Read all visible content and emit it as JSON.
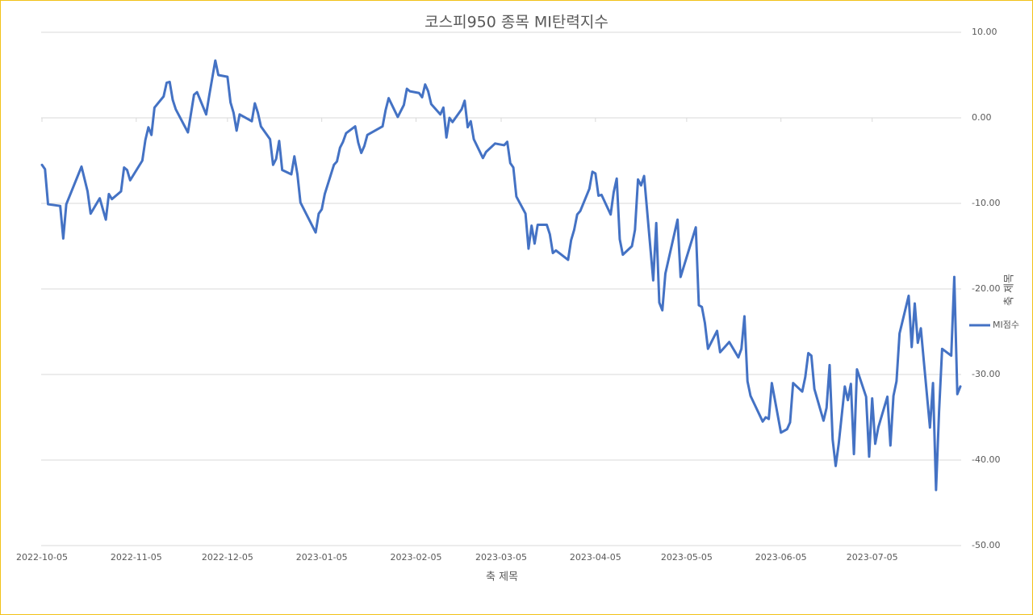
{
  "chart_data": {
    "type": "line",
    "title": "코스피950 종목 MI탄력지수",
    "x_label": "축 제목",
    "y_label": "축 제목",
    "legend": "right",
    "grid": true,
    "xlim": [
      "2022-10-05",
      "2023-08-03"
    ],
    "xticks": [
      "2022-10-05",
      "2022-11-05",
      "2022-12-05",
      "2023-01-05",
      "2023-02-05",
      "2023-03-05",
      "2023-04-05",
      "2023-05-05",
      "2023-06-05",
      "2023-07-05"
    ],
    "ylim": [
      -50,
      10
    ],
    "yticks": [
      {
        "value": 10,
        "label": "10.00"
      },
      {
        "value": 0,
        "label": "0.00"
      },
      {
        "value": -10,
        "label": "-10.00"
      },
      {
        "value": -20,
        "label": "-20.00"
      },
      {
        "value": -30,
        "label": "-30.00"
      },
      {
        "value": -40,
        "label": "-40.00"
      },
      {
        "value": -50,
        "label": "-50.00"
      }
    ],
    "x": [
      "2022-10-05",
      "2022-10-06",
      "2022-10-07",
      "2022-10-11",
      "2022-10-12",
      "2022-10-13",
      "2022-10-18",
      "2022-10-20",
      "2022-10-21",
      "2022-10-24",
      "2022-10-26",
      "2022-10-27",
      "2022-10-28",
      "2022-10-31",
      "2022-11-01",
      "2022-11-02",
      "2022-11-03",
      "2022-11-07",
      "2022-11-08",
      "2022-11-09",
      "2022-11-10",
      "2022-11-11",
      "2022-11-14",
      "2022-11-15",
      "2022-11-16",
      "2022-11-17",
      "2022-11-18",
      "2022-11-22",
      "2022-11-24",
      "2022-11-25",
      "2022-11-28",
      "2022-11-29",
      "2022-12-01",
      "2022-12-02",
      "2022-12-05",
      "2022-12-06",
      "2022-12-07",
      "2022-12-08",
      "2022-12-09",
      "2022-12-13",
      "2022-12-14",
      "2022-12-15",
      "2022-12-16",
      "2022-12-19",
      "2022-12-20",
      "2022-12-21",
      "2022-12-22",
      "2022-12-23",
      "2022-12-26",
      "2022-12-27",
      "2022-12-28",
      "2022-12-29",
      "2023-01-03",
      "2023-01-04",
      "2023-01-05",
      "2023-01-06",
      "2023-01-09",
      "2023-01-10",
      "2023-01-11",
      "2023-01-12",
      "2023-01-13",
      "2023-01-16",
      "2023-01-17",
      "2023-01-18",
      "2023-01-19",
      "2023-01-20",
      "2023-01-25",
      "2023-01-26",
      "2023-01-27",
      "2023-01-30",
      "2023-02-01",
      "2023-02-02",
      "2023-02-03",
      "2023-02-06",
      "2023-02-07",
      "2023-02-08",
      "2023-02-09",
      "2023-02-10",
      "2023-02-13",
      "2023-02-14",
      "2023-02-15",
      "2023-02-16",
      "2023-02-17",
      "2023-02-20",
      "2023-02-21",
      "2023-02-22",
      "2023-02-23",
      "2023-02-24",
      "2023-02-27",
      "2023-02-28",
      "2023-03-03",
      "2023-03-06",
      "2023-03-07",
      "2023-03-08",
      "2023-03-09",
      "2023-03-10",
      "2023-03-13",
      "2023-03-14",
      "2023-03-15",
      "2023-03-16",
      "2023-03-17",
      "2023-03-20",
      "2023-03-21",
      "2023-03-22",
      "2023-03-23",
      "2023-03-27",
      "2023-03-28",
      "2023-03-29",
      "2023-03-30",
      "2023-03-31",
      "2023-04-03",
      "2023-04-04",
      "2023-04-05",
      "2023-04-06",
      "2023-04-07",
      "2023-04-10",
      "2023-04-11",
      "2023-04-12",
      "2023-04-13",
      "2023-04-14",
      "2023-04-17",
      "2023-04-18",
      "2023-04-19",
      "2023-04-20",
      "2023-04-21",
      "2023-04-24",
      "2023-04-25",
      "2023-04-26",
      "2023-04-27",
      "2023-04-28",
      "2023-05-02",
      "2023-05-03",
      "2023-05-08",
      "2023-05-09",
      "2023-05-10",
      "2023-05-11",
      "2023-05-12",
      "2023-05-15",
      "2023-05-16",
      "2023-05-19",
      "2023-05-22",
      "2023-05-23",
      "2023-05-24",
      "2023-05-25",
      "2023-05-26",
      "2023-05-30",
      "2023-05-31",
      "2023-06-01",
      "2023-06-02",
      "2023-06-05",
      "2023-06-07",
      "2023-06-08",
      "2023-06-09",
      "2023-06-12",
      "2023-06-13",
      "2023-06-14",
      "2023-06-15",
      "2023-06-16",
      "2023-06-19",
      "2023-06-20",
      "2023-06-21",
      "2023-06-22",
      "2023-06-23",
      "2023-06-24",
      "2023-06-26",
      "2023-06-27",
      "2023-06-28",
      "2023-06-29",
      "2023-06-30",
      "2023-07-03",
      "2023-07-04",
      "2023-07-05",
      "2023-07-06",
      "2023-07-07",
      "2023-07-10",
      "2023-07-11",
      "2023-07-12",
      "2023-07-13",
      "2023-07-14",
      "2023-07-17",
      "2023-07-18",
      "2023-07-19",
      "2023-07-20",
      "2023-07-21",
      "2023-07-22",
      "2023-07-24",
      "2023-07-25",
      "2023-07-26",
      "2023-07-27",
      "2023-07-28",
      "2023-07-31",
      "2023-08-01",
      "2023-08-02",
      "2023-08-03"
    ],
    "series": [
      {
        "name": "MI점수",
        "color": "#4472c4",
        "values": [
          -5.5,
          -6.0,
          -10.1,
          -10.3,
          -14.1,
          -10.1,
          -5.7,
          -8.6,
          -11.2,
          -9.4,
          -11.9,
          -8.9,
          -9.5,
          -8.6,
          -5.8,
          -6.1,
          -7.3,
          -5.0,
          -2.6,
          -1.1,
          -2.0,
          1.2,
          2.5,
          4.1,
          4.2,
          2.1,
          1.0,
          -1.7,
          2.7,
          3.0,
          0.4,
          2.6,
          6.7,
          5.0,
          4.8,
          1.8,
          0.6,
          -1.5,
          0.4,
          -0.4,
          1.7,
          0.6,
          -1.0,
          -2.5,
          -5.5,
          -4.8,
          -2.7,
          -6.1,
          -6.6,
          -4.5,
          -6.6,
          -9.9,
          -13.4,
          -11.2,
          -10.7,
          -8.9,
          -5.5,
          -5.1,
          -3.5,
          -2.8,
          -1.8,
          -1.0,
          -2.9,
          -4.1,
          -3.3,
          -2.0,
          -1.0,
          0.9,
          2.3,
          0.1,
          1.5,
          3.4,
          3.1,
          2.9,
          2.4,
          3.9,
          3.1,
          1.6,
          0.4,
          1.2,
          -2.3,
          0.0,
          -0.5,
          1.0,
          2.0,
          -1.1,
          -0.4,
          -2.5,
          -4.7,
          -4.0,
          -3.0,
          -3.2,
          -2.8,
          -5.3,
          -5.8,
          -9.2,
          -11.2,
          -15.3,
          -12.6,
          -14.7,
          -12.5,
          -12.5,
          -13.6,
          -15.8,
          -15.5,
          -16.6,
          -14.3,
          -13.1,
          -11.3,
          -10.9,
          -8.3,
          -6.3,
          -6.5,
          -9.1,
          -9.0,
          -11.3,
          -8.7,
          -7.1,
          -14.2,
          -16.0,
          -15.0,
          -13.1,
          -7.2,
          -7.9,
          -6.8,
          -19.0,
          -12.3,
          -21.6,
          -22.5,
          -18.2,
          -11.9,
          -18.6,
          -12.8,
          -21.9,
          -22.1,
          -24.0,
          -27.0,
          -24.9,
          -27.4,
          -26.2,
          -28.0,
          -27.0,
          -23.2,
          -30.8,
          -32.5,
          -35.5,
          -35.0,
          -35.2,
          -31.0,
          -36.8,
          -36.4,
          -35.6,
          -31.0,
          -32.0,
          -30.3,
          -27.5,
          -27.8,
          -31.7,
          -35.4,
          -33.9,
          -28.9,
          -37.6,
          -40.7,
          -38.1,
          -31.4,
          -33.0,
          -31.1,
          -39.3,
          -29.4,
          -32.6,
          -39.6,
          -32.8,
          -38.1,
          -36.2,
          -32.6,
          -38.3,
          -32.5,
          -30.8,
          -25.2,
          -20.8,
          -26.8,
          -21.7,
          -26.3,
          -24.6,
          -28.5,
          -36.2,
          -31.0,
          -43.5,
          -34.3,
          -27.0,
          -27.8,
          -18.6,
          -32.3,
          -31.4
        ]
      }
    ]
  }
}
